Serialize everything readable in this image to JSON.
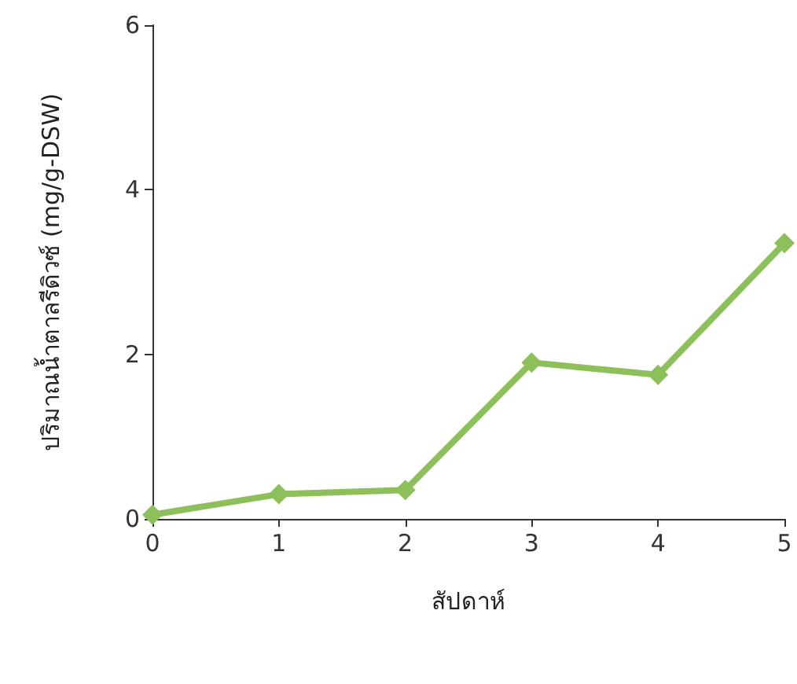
{
  "chart_data": {
    "type": "line",
    "xlabel": "สัปดาห์",
    "ylabel": "ปริมาณน้ำตาลรีดิวซ์ (mg/g-DSW)",
    "x": [
      0,
      1,
      2,
      3,
      4,
      5
    ],
    "series": [
      {
        "color": "#8dc05a",
        "values": [
          0.05,
          0.3,
          0.35,
          1.9,
          1.75,
          3.35
        ]
      }
    ],
    "xlim": [
      0,
      5
    ],
    "xticks": [
      0,
      1,
      2,
      3,
      4,
      5
    ],
    "ylim": [
      0,
      6
    ],
    "yticks": [
      0,
      2,
      4,
      6
    ],
    "marker": "diamond",
    "line_style": "solid"
  }
}
